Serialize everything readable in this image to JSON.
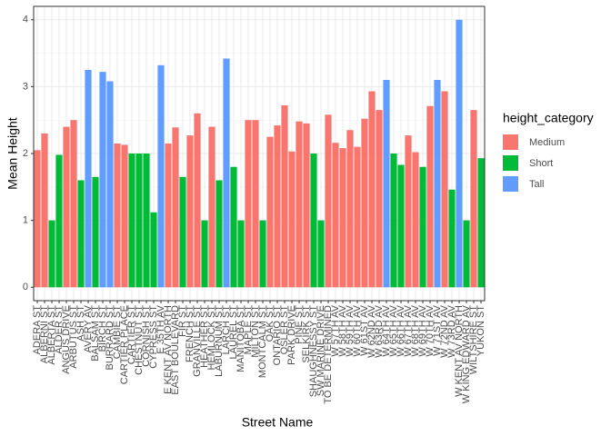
{
  "chart_data": {
    "type": "bar",
    "x_label": "Street Name",
    "y_label": "Mean Height",
    "categories": [
      "ADERA ST",
      "ALBERNI ST",
      "ALBERTA ST",
      "ALDER ST",
      "ANGUS DRIVE",
      "ARBUTUS ST",
      "ASH ST",
      "AVERY AV",
      "BALSAM ST",
      "BIRCH ST",
      "BURRARD ST",
      "CAMBIE ST",
      "CARTIER PLACE",
      "CARTIER ST",
      "CHESTNUT ST",
      "CORNISH ST",
      "CYPRESS ST",
      "E 35TH AV",
      "E KENT AV NORTH",
      "EAST BOULEVARD",
      "FIR ST",
      "FRENCH ST",
      "GRANVILLE ST",
      "HEATHER ST",
      "HEMLOCK ST",
      "LABURNUM ST",
      "LARCH ST",
      "LAUREL ST",
      "MANITOBA ST",
      "MAPLE ST",
      "MILTON ST",
      "MONTCALM ST",
      "OAK ST",
      "ONTARIO ST",
      "OSLER ST",
      "PARK DRIVE",
      "PINE ST",
      "SELKIRK ST",
      "SHAUGHNESSY ST",
      "SW MARINE DRIVE",
      "TO BE DETERMINED",
      "W 57TH AV",
      "W 58TH AV",
      "W 59TH AV",
      "W 60TH AV",
      "W 61ST AV",
      "W 62ND AV",
      "W 63RD AV",
      "W 64TH AV",
      "W 65TH AV",
      "W 66TH AV",
      "W 67TH AV",
      "W 68TH AV",
      "W 69TH AV",
      "W 70TH AV",
      "W 71ST AV",
      "W 72ND AV",
      "W 73RD AV",
      "W KENT AV NORTH",
      "W KING EDWARD AV",
      "WILTSHIRE ST",
      "YUKON ST"
    ],
    "values": [
      2.05,
      2.3,
      1.0,
      1.98,
      2.4,
      2.5,
      1.6,
      3.25,
      1.65,
      3.22,
      3.08,
      2.15,
      2.13,
      2.0,
      2.0,
      2.0,
      1.12,
      3.32,
      2.15,
      2.39,
      1.65,
      2.27,
      2.6,
      1.0,
      2.4,
      1.6,
      3.42,
      1.8,
      1.0,
      2.5,
      2.5,
      1.0,
      2.25,
      2.42,
      2.72,
      2.03,
      2.48,
      2.45,
      2.0,
      1.0,
      2.58,
      2.16,
      2.08,
      2.35,
      2.1,
      2.52,
      2.93,
      2.65,
      3.1,
      2.0,
      1.83,
      2.27,
      2.02,
      1.8,
      2.71,
      3.1,
      2.93,
      1.46,
      4.0,
      1.0,
      2.65,
      1.93
    ],
    "groups": [
      "Medium",
      "Medium",
      "Short",
      "Short",
      "Medium",
      "Medium",
      "Short",
      "Tall",
      "Short",
      "Tall",
      "Tall",
      "Medium",
      "Medium",
      "Short",
      "Short",
      "Short",
      "Short",
      "Tall",
      "Medium",
      "Medium",
      "Short",
      "Medium",
      "Medium",
      "Short",
      "Medium",
      "Short",
      "Tall",
      "Short",
      "Short",
      "Medium",
      "Medium",
      "Short",
      "Medium",
      "Medium",
      "Medium",
      "Medium",
      "Medium",
      "Medium",
      "Short",
      "Short",
      "Medium",
      "Medium",
      "Medium",
      "Medium",
      "Medium",
      "Medium",
      "Medium",
      "Medium",
      "Tall",
      "Short",
      "Short",
      "Medium",
      "Medium",
      "Short",
      "Medium",
      "Tall",
      "Medium",
      "Short",
      "Tall",
      "Short",
      "Medium",
      "Short"
    ],
    "legend": {
      "title": "height_category",
      "entries": [
        {
          "name": "Medium",
          "color": "#F8766D"
        },
        {
          "name": "Short",
          "color": "#00BA38"
        },
        {
          "name": "Tall",
          "color": "#619CFF"
        }
      ]
    },
    "ylim": [
      -0.2,
      4.2
    ],
    "yticks": [
      0,
      1,
      2,
      3,
      4
    ],
    "grid": true
  }
}
